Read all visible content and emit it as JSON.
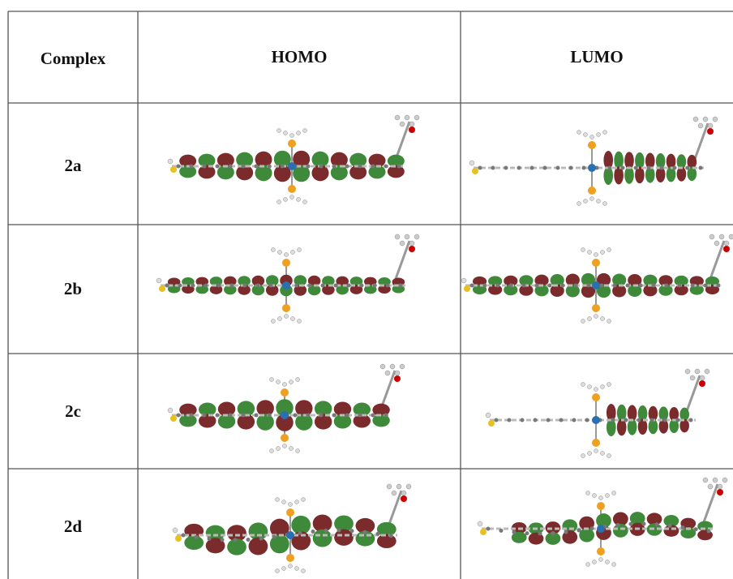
{
  "table": {
    "header": [
      "Complex",
      "HOMO",
      "LUMO"
    ],
    "rows": [
      "2a",
      "2b",
      "2c",
      "2d"
    ]
  }
}
